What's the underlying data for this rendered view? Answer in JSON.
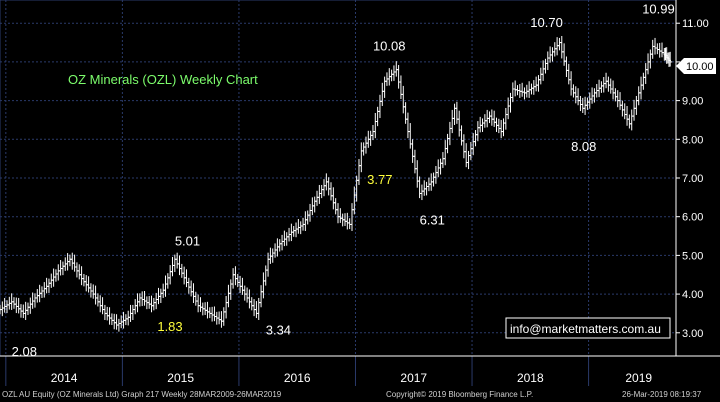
{
  "chart_data": {
    "type": "bar",
    "style": "OHLC weekly price bars",
    "title": "OZ Minerals (OZL) Weekly Chart",
    "title_color": "#7cfc6c",
    "watermark": "info@marketmatters.com.au",
    "y_ticks": [
      "3.00",
      "4.00",
      "5.00",
      "6.00",
      "7.00",
      "8.00",
      "9.00",
      "10.00",
      "11.00"
    ],
    "ylim": [
      2.4,
      11.6
    ],
    "x_ticks": [
      "2014",
      "2015",
      "2016",
      "2017",
      "2018",
      "2019"
    ],
    "last_price": "10.00",
    "grid": true,
    "annotations": [
      {
        "text": "2.08",
        "x": 2013.55,
        "y": 2.4,
        "color": "#ffffff"
      },
      {
        "text": "1.83",
        "x": 2014.8,
        "y": 3.05,
        "color": "#ffff3c"
      },
      {
        "text": "5.01",
        "x": 2014.95,
        "y": 5.25,
        "color": "#ffffff"
      },
      {
        "text": "3.34",
        "x": 2015.73,
        "y": 2.95,
        "color": "#ffffff"
      },
      {
        "text": "3.77",
        "x": 2016.6,
        "y": 6.85,
        "color": "#ffff3c"
      },
      {
        "text": "10.08",
        "x": 2016.65,
        "y": 10.3,
        "color": "#ffffff"
      },
      {
        "text": "6.31",
        "x": 2017.05,
        "y": 5.8,
        "color": "#ffffff"
      },
      {
        "text": "10.70",
        "x": 2018.0,
        "y": 10.9,
        "color": "#ffffff"
      },
      {
        "text": "8.08",
        "x": 2018.35,
        "y": 7.7,
        "color": "#ffffff"
      },
      {
        "text": "10.99",
        "x": 2018.96,
        "y": 11.25,
        "color": "#ffffff"
      }
    ],
    "series": [
      {
        "x": [
          2013.45,
          2013.55,
          2013.65,
          2013.75,
          2013.85,
          2013.95,
          2014.05,
          2014.15,
          2014.25,
          2014.35,
          2014.45,
          2014.55,
          2014.65,
          2014.75,
          2014.85,
          2014.95,
          2015.05,
          2015.15,
          2015.25,
          2015.35,
          2015.45,
          2015.55,
          2015.65,
          2015.75,
          2015.85,
          2015.95,
          2016.05,
          2016.15,
          2016.25,
          2016.35,
          2016.45,
          2016.55,
          2016.65,
          2016.75,
          2016.85,
          2016.95,
          2017.05,
          2017.15,
          2017.25,
          2017.35,
          2017.45,
          2017.55,
          2017.65,
          2017.75,
          2017.85,
          2017.95,
          2018.05,
          2018.15,
          2018.25,
          2018.35,
          2018.45,
          2018.55,
          2018.65,
          2018.75,
          2018.85,
          2018.95,
          2019.05,
          2019.15,
          2019.2
        ],
        "values": [
          3.6,
          3.8,
          3.5,
          3.9,
          4.2,
          4.6,
          4.9,
          4.4,
          4.0,
          3.5,
          3.2,
          3.4,
          3.9,
          3.7,
          4.1,
          4.9,
          4.3,
          3.7,
          3.5,
          3.3,
          4.5,
          4.0,
          3.5,
          4.9,
          5.3,
          5.6,
          5.8,
          6.4,
          6.9,
          6.0,
          5.8,
          7.7,
          8.2,
          9.5,
          9.8,
          8.2,
          6.6,
          6.9,
          7.5,
          8.8,
          7.4,
          8.3,
          8.6,
          8.2,
          9.3,
          9.2,
          9.4,
          10.1,
          10.5,
          9.3,
          8.8,
          9.2,
          9.5,
          9.0,
          8.4,
          9.4,
          10.4,
          10.2,
          10.0
        ]
      }
    ]
  },
  "footer": {
    "left": "OZL AU Equity (OZ Minerals Ltd) Graph 217  Weekly 28MAR2009-26MAR2019",
    "center": "Copyright© 2019 Bloomberg Finance L.P.",
    "right": "26-Mar-2019 08:19:37"
  },
  "colors": {
    "background": "#000000",
    "grid": "#2a3a6a",
    "bars": "#ffffff",
    "highlight": "#ffff3c",
    "title": "#7cfc6c"
  }
}
